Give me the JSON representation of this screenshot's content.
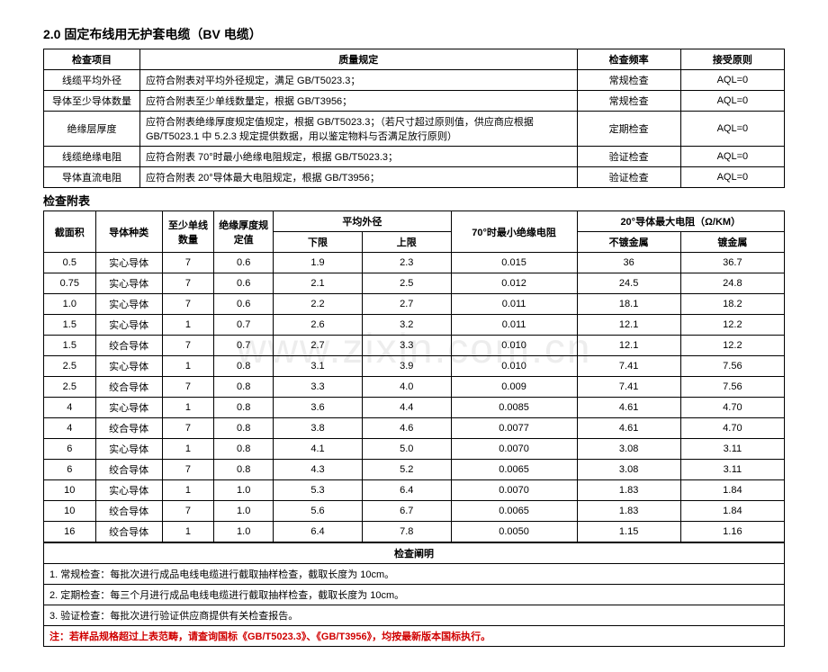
{
  "title": "2.0 固定布线用无护套电缆（BV 电缆）",
  "watermark": "www.zixin.com.cn",
  "t1": {
    "h": {
      "c1": "检查项目",
      "c2": "质量规定",
      "c3": "检查频率",
      "c4": "接受原则"
    },
    "rows": [
      {
        "c1": "线缆平均外径",
        "c2": "应符合附表对平均外径规定，满足 GB/T5023.3；",
        "c3": "常规检查",
        "c4": "AQL=0"
      },
      {
        "c1": "导体至少导体数量",
        "c2": "应符合附表至少单线数量定，根据 GB/T3956；",
        "c3": "常规检查",
        "c4": "AQL=0"
      },
      {
        "c1": "绝缘层厚度",
        "c2": "应符合附表绝缘厚度规定值规定，根据 GB/T5023.3；（若尺寸超过原则值，供应商应根据 GB/T5023.1 中 5.2.3 规定提供数据，用以鉴定物料与否满足放行原则）",
        "c3": "定期检查",
        "c4": "AQL=0"
      },
      {
        "c1": "线缆绝缘电阻",
        "c2": "应符合附表 70°时最小绝缘电阻规定，根据 GB/T5023.3；",
        "c3": "验证检查",
        "c4": "AQL=0"
      },
      {
        "c1": "导体直流电阻",
        "c2": "应符合附表 20°导体最大电阻规定，根据 GB/T3956；",
        "c3": "验证检查",
        "c4": "AQL=0"
      }
    ]
  },
  "t2": {
    "section": "检查附表",
    "h": {
      "c1": "截面积",
      "c2": "导体种类",
      "c3": "至少单线数量",
      "c4": "绝缘厚度规定值",
      "c5": "平均外径",
      "c5a": "下限",
      "c5b": "上限",
      "c6": "70°时最小绝缘电阻",
      "c7": "20°导体最大电阻（Ω/KM）",
      "c7a": "不镀金属",
      "c7b": "镀金属"
    },
    "rows": [
      {
        "a": "0.5",
        "b": "实心导体",
        "c": "7",
        "d": "0.6",
        "e": "1.9",
        "f": "2.3",
        "g": "0.015",
        "h": "36",
        "i": "36.7"
      },
      {
        "a": "0.75",
        "b": "实心导体",
        "c": "7",
        "d": "0.6",
        "e": "2.1",
        "f": "2.5",
        "g": "0.012",
        "h": "24.5",
        "i": "24.8"
      },
      {
        "a": "1.0",
        "b": "实心导体",
        "c": "7",
        "d": "0.6",
        "e": "2.2",
        "f": "2.7",
        "g": "0.011",
        "h": "18.1",
        "i": "18.2"
      },
      {
        "a": "1.5",
        "b": "实心导体",
        "c": "1",
        "d": "0.7",
        "e": "2.6",
        "f": "3.2",
        "g": "0.011",
        "h": "12.1",
        "i": "12.2"
      },
      {
        "a": "1.5",
        "b": "绞合导体",
        "c": "7",
        "d": "0.7",
        "e": "2.7",
        "f": "3.3",
        "g": "0.010",
        "h": "12.1",
        "i": "12.2"
      },
      {
        "a": "2.5",
        "b": "实心导体",
        "c": "1",
        "d": "0.8",
        "e": "3.1",
        "f": "3.9",
        "g": "0.010",
        "h": "7.41",
        "i": "7.56"
      },
      {
        "a": "2.5",
        "b": "绞合导体",
        "c": "7",
        "d": "0.8",
        "e": "3.3",
        "f": "4.0",
        "g": "0.009",
        "h": "7.41",
        "i": "7.56"
      },
      {
        "a": "4",
        "b": "实心导体",
        "c": "1",
        "d": "0.8",
        "e": "3.6",
        "f": "4.4",
        "g": "0.0085",
        "h": "4.61",
        "i": "4.70"
      },
      {
        "a": "4",
        "b": "绞合导体",
        "c": "7",
        "d": "0.8",
        "e": "3.8",
        "f": "4.6",
        "g": "0.0077",
        "h": "4.61",
        "i": "4.70"
      },
      {
        "a": "6",
        "b": "实心导体",
        "c": "1",
        "d": "0.8",
        "e": "4.1",
        "f": "5.0",
        "g": "0.0070",
        "h": "3.08",
        "i": "3.11"
      },
      {
        "a": "6",
        "b": "绞合导体",
        "c": "7",
        "d": "0.8",
        "e": "4.3",
        "f": "5.2",
        "g": "0.0065",
        "h": "3.08",
        "i": "3.11"
      },
      {
        "a": "10",
        "b": "实心导体",
        "c": "1",
        "d": "1.0",
        "e": "5.3",
        "f": "6.4",
        "g": "0.0070",
        "h": "1.83",
        "i": "1.84"
      },
      {
        "a": "10",
        "b": "绞合导体",
        "c": "7",
        "d": "1.0",
        "e": "5.6",
        "f": "6.7",
        "g": "0.0065",
        "h": "1.83",
        "i": "1.84"
      },
      {
        "a": "16",
        "b": "绞合导体",
        "c": "1",
        "d": "1.0",
        "e": "6.4",
        "f": "7.8",
        "g": "0.0050",
        "h": "1.15",
        "i": "1.16"
      }
    ]
  },
  "t3": {
    "header": "检查阐明",
    "rows": [
      "1. 常规检查：每批次进行成品电线电缆进行截取抽样检查，截取长度为 10cm。",
      "2. 定期检查：每三个月进行成品电线电缆进行截取抽样检查，截取长度为 10cm。",
      "3. 验证检查：每批次进行验证供应商提供有关检查报告。",
      "注：若样品规格超过上表范畴，请查询国标《GB/T5023.3》、《GB/T3956》，均按最新版本国标执行。"
    ]
  }
}
